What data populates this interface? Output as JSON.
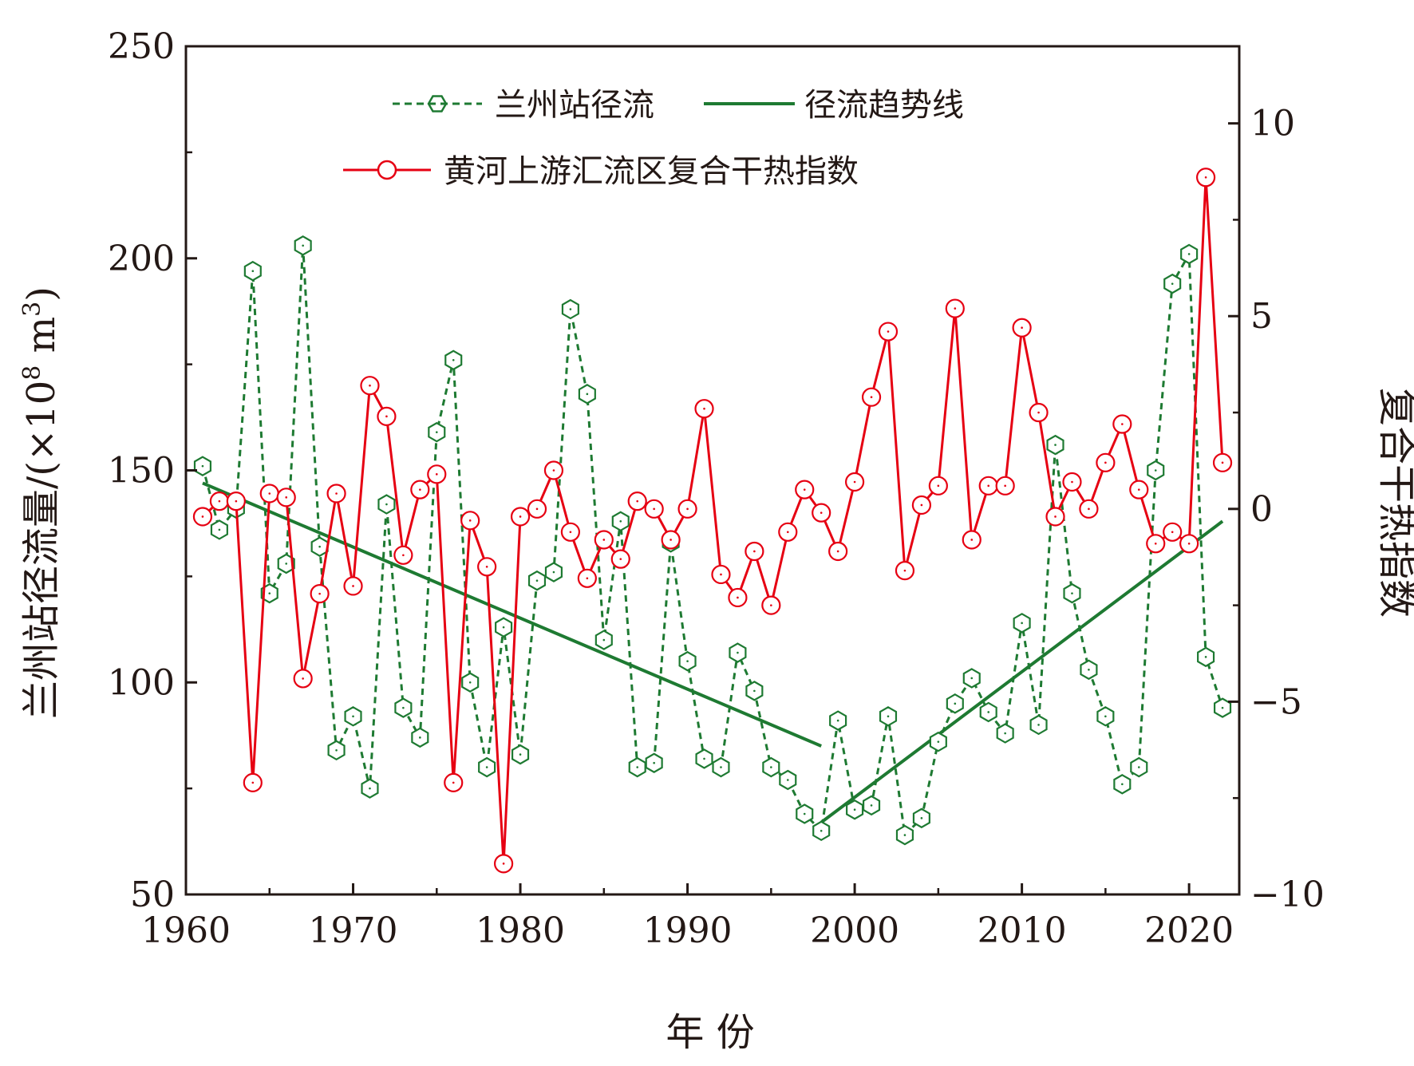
{
  "chart_data": {
    "type": "line",
    "xlabel": "年 份",
    "ylabel_left_prefix": "兰州站径流量/(×10",
    "ylabel_left_sup8": "8",
    "ylabel_left_mid": " m",
    "ylabel_left_sup3": "3",
    "ylabel_left_suffix": ")",
    "ylabel_right": "复合干热指数",
    "x_ticks": [
      "1960",
      "1970",
      "1980",
      "1990",
      "2000",
      "2010",
      "2020"
    ],
    "y_left_ticks": [
      "50",
      "100",
      "150",
      "200",
      "250"
    ],
    "y_right_ticks": [
      "−10",
      "−5",
      "0",
      "5",
      "10"
    ],
    "xlim": [
      1960,
      2023
    ],
    "ylim_left": [
      50,
      250
    ],
    "ylim_right": [
      -10,
      12
    ],
    "colors": {
      "runoff": "#1e7a32",
      "trend": "#1e7a32",
      "index": "#e60012",
      "axis": "#231815"
    },
    "legend": {
      "runoff": "兰州站径流",
      "trend": "径流趋势线",
      "index": "黄河上游汇流区复合干热指数"
    },
    "series": [
      {
        "name": "兰州站径流",
        "axis": "left",
        "style": "dashed-hexagon",
        "x": [
          1961,
          1962,
          1963,
          1964,
          1965,
          1966,
          1967,
          1968,
          1969,
          1970,
          1971,
          1972,
          1973,
          1974,
          1975,
          1976,
          1977,
          1978,
          1979,
          1980,
          1981,
          1982,
          1983,
          1984,
          1985,
          1986,
          1987,
          1988,
          1989,
          1990,
          1991,
          1992,
          1993,
          1994,
          1995,
          1996,
          1997,
          1998,
          1999,
          2000,
          2001,
          2002,
          2003,
          2004,
          2005,
          2006,
          2007,
          2008,
          2009,
          2010,
          2011,
          2012,
          2013,
          2014,
          2015,
          2016,
          2017,
          2018,
          2019,
          2020,
          2021,
          2022
        ],
        "values": [
          151,
          136,
          141,
          197,
          121,
          128,
          203,
          132,
          84,
          92,
          75,
          142,
          94,
          87,
          159,
          176,
          100,
          80,
          113,
          83,
          124,
          126,
          188,
          168,
          110,
          138,
          80,
          81,
          133,
          105,
          82,
          80,
          107,
          98,
          80,
          77,
          69,
          65,
          91,
          70,
          71,
          92,
          64,
          68,
          86,
          95,
          101,
          93,
          88,
          114,
          90,
          156,
          121,
          103,
          92,
          76,
          80,
          150,
          194,
          201,
          106,
          94
        ]
      },
      {
        "name": "径流趋势线",
        "axis": "left",
        "style": "solid-line",
        "segments": [
          {
            "x": [
              1961,
              1998
            ],
            "values": [
              147,
              85
            ]
          },
          {
            "x": [
              1998,
              2022
            ],
            "values": [
              67,
              138
            ]
          }
        ]
      },
      {
        "name": "黄河上游汇流区复合干热指数",
        "axis": "right",
        "style": "solid-circle",
        "x": [
          1961,
          1962,
          1963,
          1964,
          1965,
          1966,
          1967,
          1968,
          1969,
          1970,
          1971,
          1972,
          1973,
          1974,
          1975,
          1976,
          1977,
          1978,
          1979,
          1980,
          1981,
          1982,
          1983,
          1984,
          1985,
          1986,
          1987,
          1988,
          1989,
          1990,
          1991,
          1992,
          1993,
          1994,
          1995,
          1996,
          1997,
          1998,
          1999,
          2000,
          2001,
          2002,
          2003,
          2004,
          2005,
          2006,
          2007,
          2008,
          2009,
          2010,
          2011,
          2012,
          2013,
          2014,
          2015,
          2016,
          2017,
          2018,
          2019,
          2020,
          2021,
          2022
        ],
        "values": [
          -0.2,
          0.2,
          0.2,
          -7.1,
          0.4,
          0.3,
          -4.4,
          -2.2,
          0.4,
          -2.0,
          3.2,
          2.4,
          -1.2,
          0.5,
          0.9,
          -7.1,
          -0.3,
          -1.5,
          -9.2,
          -0.2,
          0.0,
          1.0,
          -0.6,
          -1.8,
          -0.8,
          -1.3,
          0.2,
          0.0,
          -0.8,
          0.0,
          2.6,
          -1.7,
          -2.3,
          -1.1,
          -2.5,
          -0.6,
          0.5,
          -0.1,
          -1.1,
          0.7,
          2.9,
          4.6,
          -1.6,
          0.1,
          0.6,
          5.2,
          -0.8,
          0.6,
          0.6,
          4.7,
          2.5,
          -0.2,
          0.7,
          0.0,
          1.2,
          2.2,
          0.5,
          -0.9,
          -0.6,
          -0.9,
          8.6,
          1.2
        ]
      }
    ],
    "grid": false,
    "legend_placement": "top-center"
  }
}
